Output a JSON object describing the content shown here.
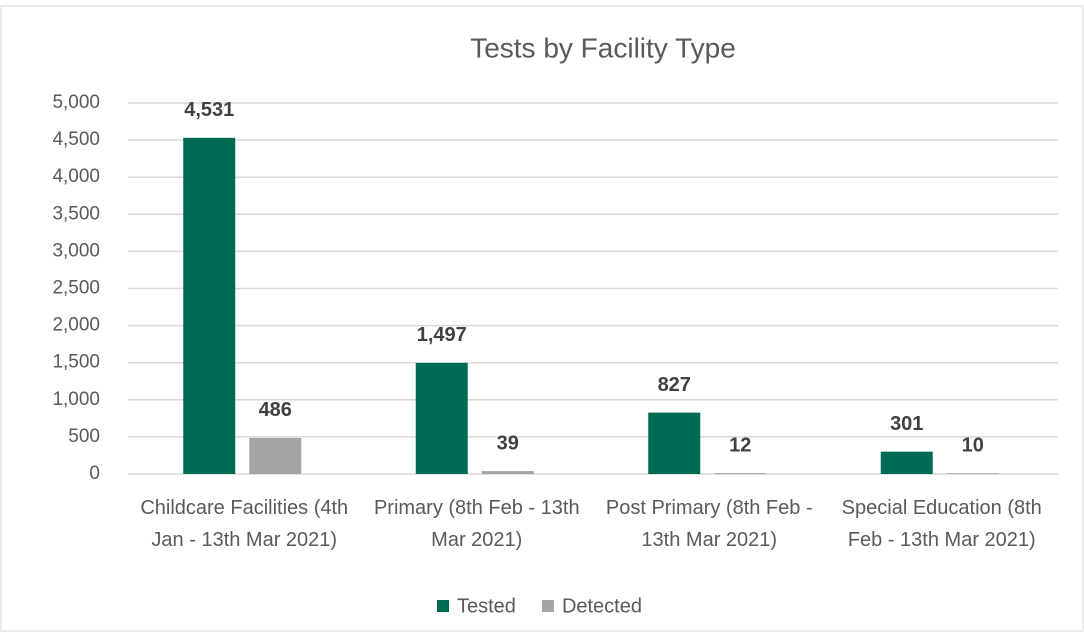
{
  "chart_data": {
    "type": "bar",
    "title": "Tests by Facility Type",
    "categories": [
      "Childcare Facilities (4th Jan - 13th Mar 2021)",
      "Primary (8th Feb - 13th Mar 2021)",
      "Post Primary (8th Feb - 13th Mar 2021)",
      "Special Education (8th Feb - 13th Mar 2021)"
    ],
    "series": [
      {
        "name": "Tested",
        "color": "#006b54",
        "values": [
          4531,
          1497,
          827,
          301
        ],
        "value_labels": [
          "4,531",
          "1,497",
          "827",
          "301"
        ]
      },
      {
        "name": "Detected",
        "color": "#a5a5a5",
        "values": [
          486,
          39,
          12,
          10
        ],
        "value_labels": [
          "486",
          "39",
          "12",
          "10"
        ]
      }
    ],
    "ylim": [
      0,
      5000
    ],
    "yticks": [
      0,
      500,
      {
        "value": 1000,
        "label": "1,000"
      },
      {
        "value": 1500,
        "label": "1,500"
      },
      {
        "value": 2000,
        "label": "2,000"
      },
      {
        "value": 2500,
        "label": "2,500"
      },
      {
        "value": 3000,
        "label": "3,000"
      },
      {
        "value": 3500,
        "label": "3,500"
      },
      {
        "value": 4000,
        "label": "4,000"
      },
      {
        "value": 4500,
        "label": "4,500"
      },
      {
        "value": 5000,
        "label": "5,000"
      }
    ],
    "grid": true,
    "legend": "bottom"
  }
}
